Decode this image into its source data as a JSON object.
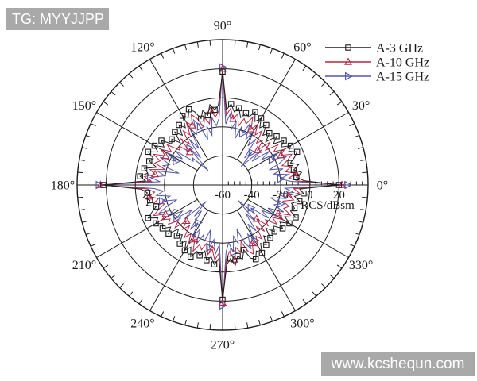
{
  "watermarks": {
    "top_left": "TG: MYYJJPP",
    "bottom_right": "www.kcshequn.com"
  },
  "chart_data": {
    "type": "line",
    "subtype": "polar-line",
    "title": "",
    "grid": true,
    "ink_color": "#1a1a1a",
    "radial_axis": {
      "label": "RCS/dBsm",
      "unit": "dBsm",
      "min": -60,
      "max": 40,
      "major_step": 20,
      "minor_step": 4,
      "tick_values": [
        -60,
        -40,
        -20,
        0,
        20
      ],
      "tick_labels": [
        "-60",
        "-40",
        "-20",
        "0",
        "20"
      ],
      "circle_values": [
        -40,
        -20,
        0,
        20,
        40
      ]
    },
    "angular_axis": {
      "spoke_step_deg": 30,
      "tick_step_deg": 5,
      "label_angles_deg": [
        0,
        30,
        60,
        90,
        120,
        150,
        180,
        210,
        240,
        270,
        300,
        330
      ],
      "labels": [
        "0°",
        "30°",
        "60°",
        "90°",
        "120°",
        "150°",
        "180°",
        "210°",
        "240°",
        "270°",
        "300°",
        "330°"
      ]
    },
    "legend": {
      "position": "top-right"
    },
    "start_deg": 0,
    "step_deg": 3,
    "series": [
      {
        "name": "A-15 GHz",
        "color": "#5156a8",
        "marker": "triangle-right",
        "marker_every": 7,
        "marker_phase": 2,
        "values": [
          26,
          -13,
          -20,
          -14,
          -24,
          -17,
          -26,
          -18,
          -12,
          -22,
          -16,
          -28,
          -20,
          -34,
          -24,
          -42,
          -30,
          -36,
          -21,
          -28,
          -17,
          -25,
          -14,
          -22,
          -18,
          -27,
          -15,
          -21,
          -11,
          -18,
          21,
          -14,
          -19,
          -13,
          -25,
          -18,
          -27,
          -17,
          -11,
          -21,
          -15,
          -30,
          -21,
          -36,
          -26,
          -46,
          -32,
          -34,
          -20,
          -27,
          -16,
          -24,
          -13,
          -21,
          -17,
          -29,
          -14,
          -20,
          -10,
          -17,
          25,
          -13,
          -19,
          -14,
          -23,
          -17,
          -27,
          -19,
          -12,
          -23,
          -17,
          -27,
          -21,
          -33,
          -25,
          -44,
          -31,
          -37,
          -22,
          -29,
          -18,
          -26,
          -15,
          -23,
          -19,
          -28,
          -16,
          -22,
          -12,
          -19,
          23,
          -14,
          -20,
          -13,
          -24,
          -18,
          -28,
          -17,
          -12,
          -22,
          -16,
          -28,
          -21,
          -35,
          -26,
          -45,
          -30,
          -35,
          -21,
          -28,
          -17,
          -25,
          -14,
          -22,
          -18,
          -26,
          -15,
          -21,
          -11,
          -17
        ]
      },
      {
        "name": "A-10 GHz",
        "color": "#b52742",
        "marker": "triangle-up",
        "marker_every": 6,
        "marker_phase": 3,
        "values": [
          22,
          -8,
          -14,
          -9,
          -16,
          -11,
          -17,
          -12,
          -8,
          -15,
          -11,
          -18,
          -13,
          -22,
          -16,
          -26,
          -19,
          -23,
          -14,
          -19,
          -12,
          -17,
          -9,
          -15,
          -12,
          -18,
          -10,
          -14,
          -7,
          -12,
          20,
          -9,
          -13,
          -8,
          -17,
          -12,
          -18,
          -11,
          -7,
          -14,
          -10,
          -19,
          -14,
          -24,
          -17,
          -28,
          -20,
          -22,
          -13,
          -18,
          -11,
          -16,
          -8,
          -14,
          -11,
          -19,
          -9,
          -13,
          -6,
          -11,
          24,
          -8,
          -13,
          -9,
          -15,
          -11,
          -18,
          -13,
          -8,
          -16,
          -12,
          -17,
          -14,
          -21,
          -16,
          -25,
          -19,
          -24,
          -15,
          -20,
          -13,
          -18,
          -10,
          -16,
          -13,
          -19,
          -11,
          -15,
          -8,
          -13,
          21,
          -9,
          -14,
          -8,
          -16,
          -12,
          -19,
          -11,
          -8,
          -15,
          -11,
          -18,
          -14,
          -23,
          -17,
          -27,
          -18,
          -22,
          -14,
          -19,
          -12,
          -17,
          -9,
          -15,
          -12,
          -17,
          -10,
          -14,
          -7,
          -11
        ]
      },
      {
        "name": "A-3 GHz",
        "color": "#1c1c1c",
        "marker": "square",
        "marker_every": 2,
        "marker_phase": 0,
        "values": [
          20,
          -4,
          -9,
          -5,
          -10,
          -6,
          -11,
          -7,
          -4,
          -9,
          -6,
          -12,
          -8,
          -15,
          -10,
          -18,
          -12,
          -16,
          -9,
          -13,
          -7,
          -11,
          -5,
          -10,
          -8,
          -12,
          -6,
          -9,
          -4,
          -8,
          18,
          -5,
          -8,
          -4,
          -11,
          -7,
          -12,
          -6,
          -3,
          -8,
          -5,
          -13,
          -9,
          -16,
          -11,
          -19,
          -13,
          -15,
          -8,
          -12,
          -6,
          -10,
          -4,
          -9,
          -7,
          -13,
          -5,
          -8,
          -3,
          -7,
          22,
          -4,
          -8,
          -5,
          -9,
          -6,
          -12,
          -8,
          -4,
          -10,
          -7,
          -11,
          -9,
          -14,
          -10,
          -17,
          -13,
          -16,
          -10,
          -14,
          -8,
          -12,
          -6,
          -11,
          -9,
          -13,
          -7,
          -10,
          -5,
          -9,
          19,
          -5,
          -9,
          -4,
          -10,
          -7,
          -13,
          -6,
          -4,
          -9,
          -6,
          -12,
          -9,
          -15,
          -11,
          -18,
          -12,
          -15,
          -9,
          -13,
          -7,
          -12,
          -5,
          -10,
          -8,
          -11,
          -6,
          -10,
          -4,
          -7
        ]
      }
    ],
    "legend_order": [
      "A-3 GHz",
      "A-10 GHz",
      "A-15 GHz"
    ]
  }
}
